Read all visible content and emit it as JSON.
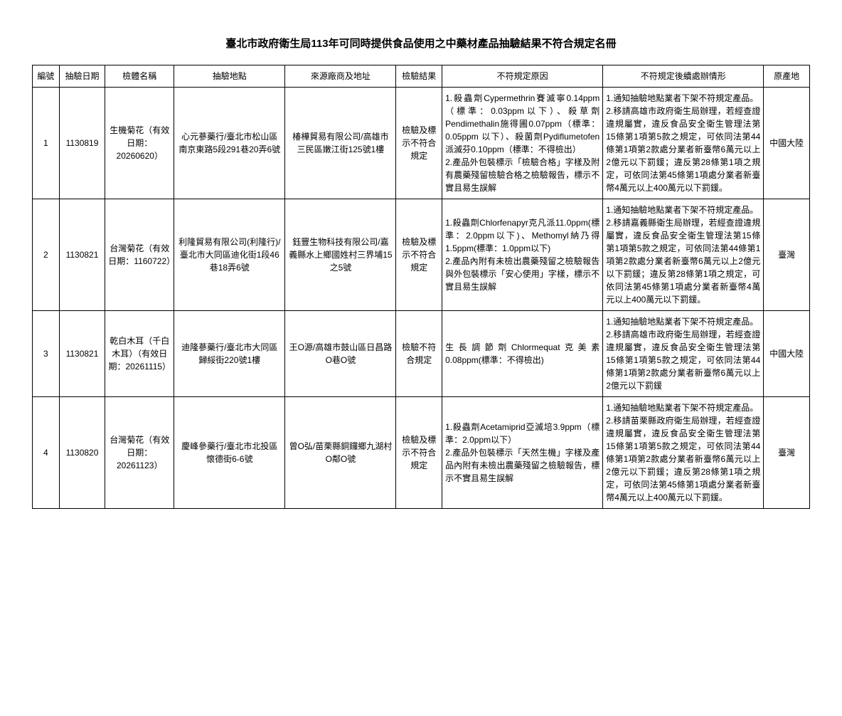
{
  "title": "臺北市政府衛生局113年可同時提供食品使用之中藥材產品抽驗結果不符合規定名冊",
  "headers": {
    "no": "編號",
    "date": "抽驗日期",
    "name": "檢體名稱",
    "location": "抽驗地點",
    "source": "來源廠商及地址",
    "result": "檢驗結果",
    "reason": "不符規定原因",
    "followup": "不符規定後續處辦情形",
    "origin": "原產地"
  },
  "rows": [
    {
      "no": "1",
      "date": "1130819",
      "name": "生機菊花（有效日期：20260620）",
      "location": "心元蔘藥行/臺北市松山區南京東路5段291巷20弄6號",
      "source": "椿樺貿易有限公司/高雄市三民區嫩江街125號1樓",
      "result": "檢驗及標示不符合規定",
      "reason": "1.殺蟲劑Cypermethrin賽滅寧0.14ppm（標準：0.03ppm以下）、殺草劑Pendimethalin施得圃0.07ppm（標準：0.05ppm 以下）、殺菌劑Pydiflumetofen派滅芬0.10ppm（標準：不得檢出）\n2.產品外包裝標示「檢驗合格」字樣及附有農藥殘留檢驗合格之檢驗報告，標示不實且易生誤解",
      "followup": "1.通知抽驗地點業者下架不符規定產品。\n2.移請高雄市政府衛生局辦理，若經查證違規屬實，違反食品安全衛生管理法第15條第1項第5款之規定，可依同法第44條第1項第2款處分業者新臺幣6萬元以上2億元以下罰鍰；違反第28條第1項之規定，可依同法第45條第1項處分業者新臺幣4萬元以上400萬元以下罰鍰。",
      "origin": "中國大陸"
    },
    {
      "no": "2",
      "date": "1130821",
      "name": "台灣菊花（有效日期：1160722）",
      "location": "利隆貿易有限公司(利隆行)/臺北市大同區迪化街1段46巷18弄6號",
      "source": "鈺豐生物科技有限公司/嘉義縣水上鄉國姓村三界埔15之5號",
      "result": "檢驗及標示不符合規定",
      "reason": "1.殺蟲劑Chlorfenapyr克凡派11.0ppm(標準：2.0ppm以下)、Methomyl納乃得1.5ppm(標準：1.0ppm以下)\n2.產品內附有未檢出農藥殘留之檢驗報告與外包裝標示「安心使用」字樣，標示不實且易生誤解",
      "followup": "1.通知抽驗地點業者下架不符規定產品。\n2.移請嘉義縣衛生局辦理，若經查證違規屬實，違反食品安全衛生管理法第15條第1項第5款之規定，可依同法第44條第1項第2款處分業者新臺幣6萬元以上2億元以下罰鍰；違反第28條第1項之規定，可依同法第45條第1項處分業者新臺幣4萬元以上400萬元以下罰鍰。",
      "origin": "臺灣"
    },
    {
      "no": "3",
      "date": "1130821",
      "name": "乾白木耳（千白木耳）（有效日期：20261115）",
      "location": "迪隆蔘藥行/臺北市大同區歸綏街220號1樓",
      "source": "王O源/高雄市鼓山區日昌路O巷O號",
      "result": "檢驗不符合規定",
      "reason": "生長調節劑Chlormequat克美素0.08ppm(標準：不得檢出)",
      "followup": "1.通知抽驗地點業者下架不符規定產品。\n2.移請高雄市政府衛生局辦理，若經查證違規屬實，違反食品安全衛生管理法第15條第1項第5款之規定，可依同法第44條第1項第2款處分業者新臺幣6萬元以上2億元以下罰鍰",
      "origin": "中國大陸"
    },
    {
      "no": "4",
      "date": "1130820",
      "name": "台灣菊花（有效日期：20261123）",
      "location": "慶峰參藥行/臺北市北投區懷德街6-6號",
      "source": "曾O弘/苗栗縣銅鑼鄉九湖村O鄰O號",
      "result": "檢驗及標示不符合規定",
      "reason": "1.殺蟲劑Acetamiprid亞滅培3.9ppm（標準：2.0ppm以下）\n2.產品外包裝標示「天然生機」字樣及產品內附有未檢出農藥殘留之檢驗報告，標示不實且易生誤解",
      "followup": "1.通知抽驗地點業者下架不符規定產品。\n2.移請苗栗縣政府衛生局辦理，若經查證違規屬實，違反食品安全衛生管理法第15條第1項第5款之規定，可依同法第44條第1項第2款處分業者新臺幣6萬元以上2億元以下罰鍰；違反第28條第1項之規定，可依同法第45條第1項處分業者新臺幣4萬元以上400萬元以下罰鍰。",
      "origin": "臺灣"
    }
  ]
}
